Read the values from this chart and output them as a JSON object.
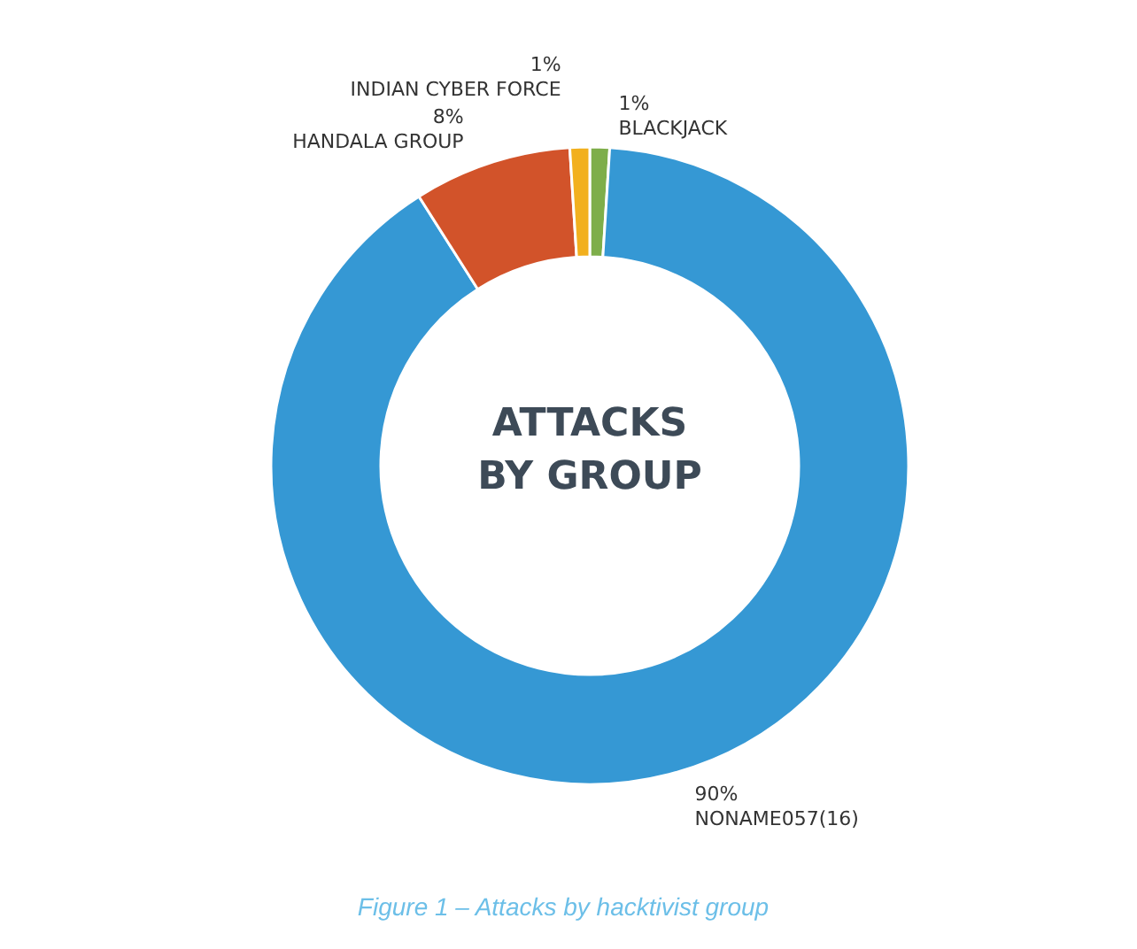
{
  "chart_data": {
    "type": "donut",
    "title": "ATTACKS BY GROUP",
    "categories": [
      "BLACKJACK",
      "NONAME057(16)",
      "HANDALA GROUP",
      "INDIAN CYBER FORCE"
    ],
    "values": [
      1,
      90,
      8,
      1
    ],
    "colors": [
      "#7eae4a",
      "#3598d4",
      "#d2532a",
      "#f2b01e"
    ],
    "value_labels": [
      "1%",
      "90%",
      "8%",
      "1%"
    ],
    "annotations": [
      "Figure 1 – Attacks by hacktivist group"
    ]
  }
}
